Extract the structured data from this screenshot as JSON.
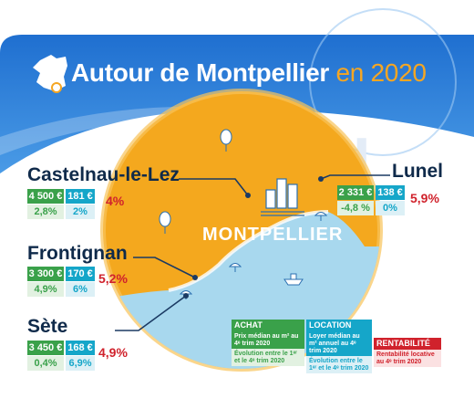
{
  "title": {
    "main": "Autour de Montpellier",
    "year": "en 2020"
  },
  "center_label": "MONTPELLIER",
  "watermark": "MONTPELLIER",
  "colors": {
    "sky": "#2a7fd6",
    "circle": "#f4a81e",
    "sea": "#a8d8ee",
    "achat": "#3aa14a",
    "location": "#15a6c9",
    "rentabilite": "#d0222c",
    "text_dark": "#0f2a4a"
  },
  "cities": [
    {
      "name": "Castelnau-le-Lez",
      "prix": "4 500 €",
      "loyer": "181 €",
      "evo_prix": "2,8%",
      "evo_loyer": "2%",
      "rentabilite": "4%"
    },
    {
      "name": "Lunel",
      "prix": "2 331 €",
      "loyer": "138 €",
      "evo_prix": "-4,8 %",
      "evo_loyer": "0%",
      "rentabilite": "5,9%"
    },
    {
      "name": "Frontignan",
      "prix": "3 300 €",
      "loyer": "170 €",
      "evo_prix": "4,9%",
      "evo_loyer": "6%",
      "rentabilite": "5,2%"
    },
    {
      "name": "Sète",
      "prix": "3 450 €",
      "loyer": "168 €",
      "evo_prix": "0,4%",
      "evo_loyer": "6,9%",
      "rentabilite": "4,9%"
    }
  ],
  "legend": {
    "achat": {
      "title": "ACHAT",
      "line1": "Prix médian au m² au 4ᵉ trim 2020",
      "line2": "Évolution entre le 1ᵉʳ et le 4ᵉ trim 2020"
    },
    "location": {
      "title": "LOCATION",
      "line1": "Loyer médian au m² annuel au 4ᵉ trim 2020",
      "line2": "Évolution entre le 1ᵉʳ et le 4ᵉ trim 2020"
    },
    "rentabilite": {
      "title": "RENTABILITÉ",
      "line1": "Rentabilité locative au 4ᵉ trim 2020"
    }
  },
  "icons": [
    "france-map-icon",
    "tree-icon",
    "city-buildings-icon",
    "umbrella-icon",
    "boat-icon",
    "dive-mask-icon"
  ]
}
